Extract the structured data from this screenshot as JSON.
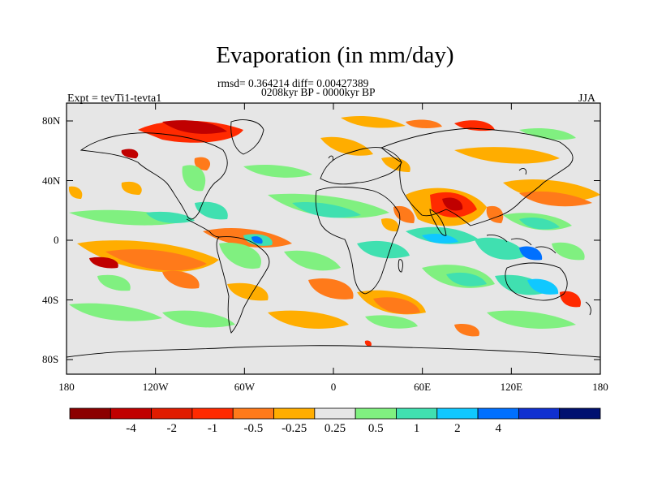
{
  "title": "Evaporation (in mm/day)",
  "stats_line": "rmsd= 0.364214 diff= 0.00427389",
  "period_line": "0208kyr BP - 0000kyr BP",
  "experiment": "Expt = tevTi1-tevta1",
  "season": "JJA",
  "lat_labels": [
    "80N",
    "40N",
    "0",
    "40S",
    "80S"
  ],
  "lat_values": [
    80,
    40,
    0,
    -40,
    -80
  ],
  "lon_labels": [
    "180",
    "120W",
    "60W",
    "0",
    "60E",
    "120E",
    "180"
  ],
  "lon_values": [
    -180,
    -120,
    -60,
    0,
    60,
    120,
    180
  ],
  "colorbar": {
    "colors": [
      "#8b0000",
      "#c00000",
      "#e01c00",
      "#ff2a00",
      "#ff7a1a",
      "#ffad00",
      "#e6e6e6",
      "#80f080",
      "#40e0b0",
      "#10c8ff",
      "#0070ff",
      "#1030d0",
      "#001070"
    ],
    "labels": [
      "-4",
      "-2",
      "-1",
      "-0.5",
      "-0.25",
      "0.25",
      "0.5",
      "1",
      "2",
      "4"
    ]
  }
}
